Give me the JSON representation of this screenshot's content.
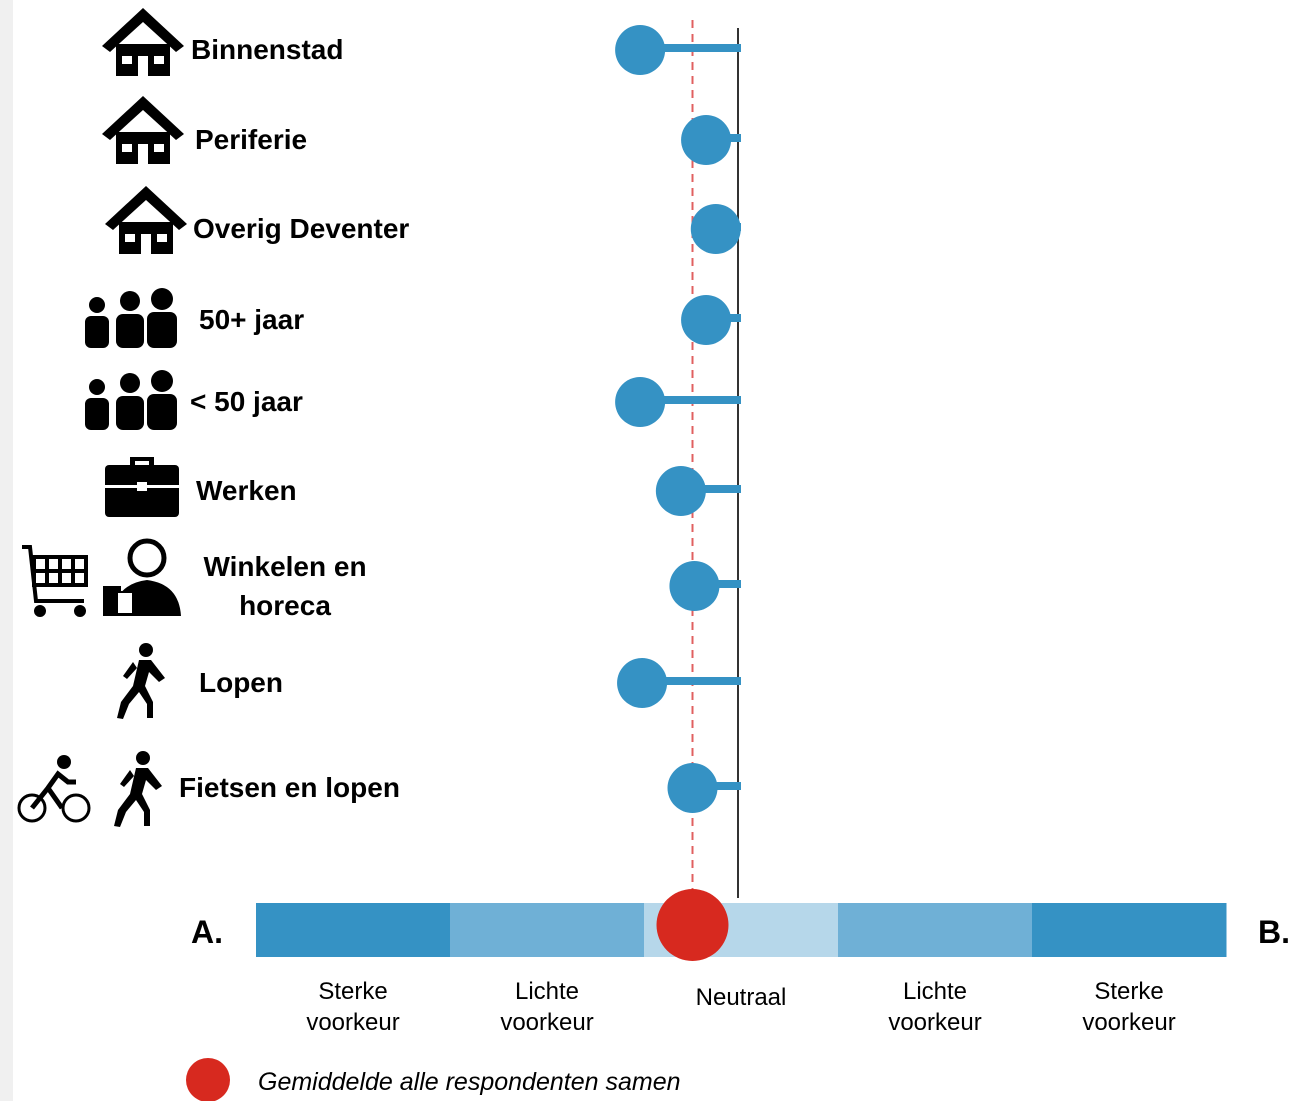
{
  "chart_data": {
    "type": "lollipop",
    "categories": [
      "Binnenstad",
      "Periferie",
      "Overig Deventer",
      "50+ jaar",
      "< 50 jaar",
      "Werken",
      "Winkelen en horeca",
      "Lopen",
      "Fietsen en lopen"
    ],
    "values": [
      -0.52,
      -0.18,
      -0.13,
      -0.18,
      -0.52,
      -0.31,
      -0.24,
      -0.51,
      -0.25
    ],
    "color": "#3592c4",
    "xlim": [
      -2.5,
      2.5
    ],
    "average": {
      "name": "Gemiddelde alle respondenten samen",
      "value": -0.25,
      "color": "#d7291f"
    },
    "end_labels": [
      "A.",
      "B."
    ],
    "scale": [
      {
        "label": "Sterke voorkeur",
        "color": "#3592c4"
      },
      {
        "label": "Lichte voorkeur",
        "color": "#6fb0d6"
      },
      {
        "label": "Neutraal",
        "color": "#b6d7ea"
      },
      {
        "label": "Lichte voorkeur",
        "color": "#6fb0d6"
      },
      {
        "label": "Sterke voorkeur",
        "color": "#3592c4"
      }
    ]
  }
}
